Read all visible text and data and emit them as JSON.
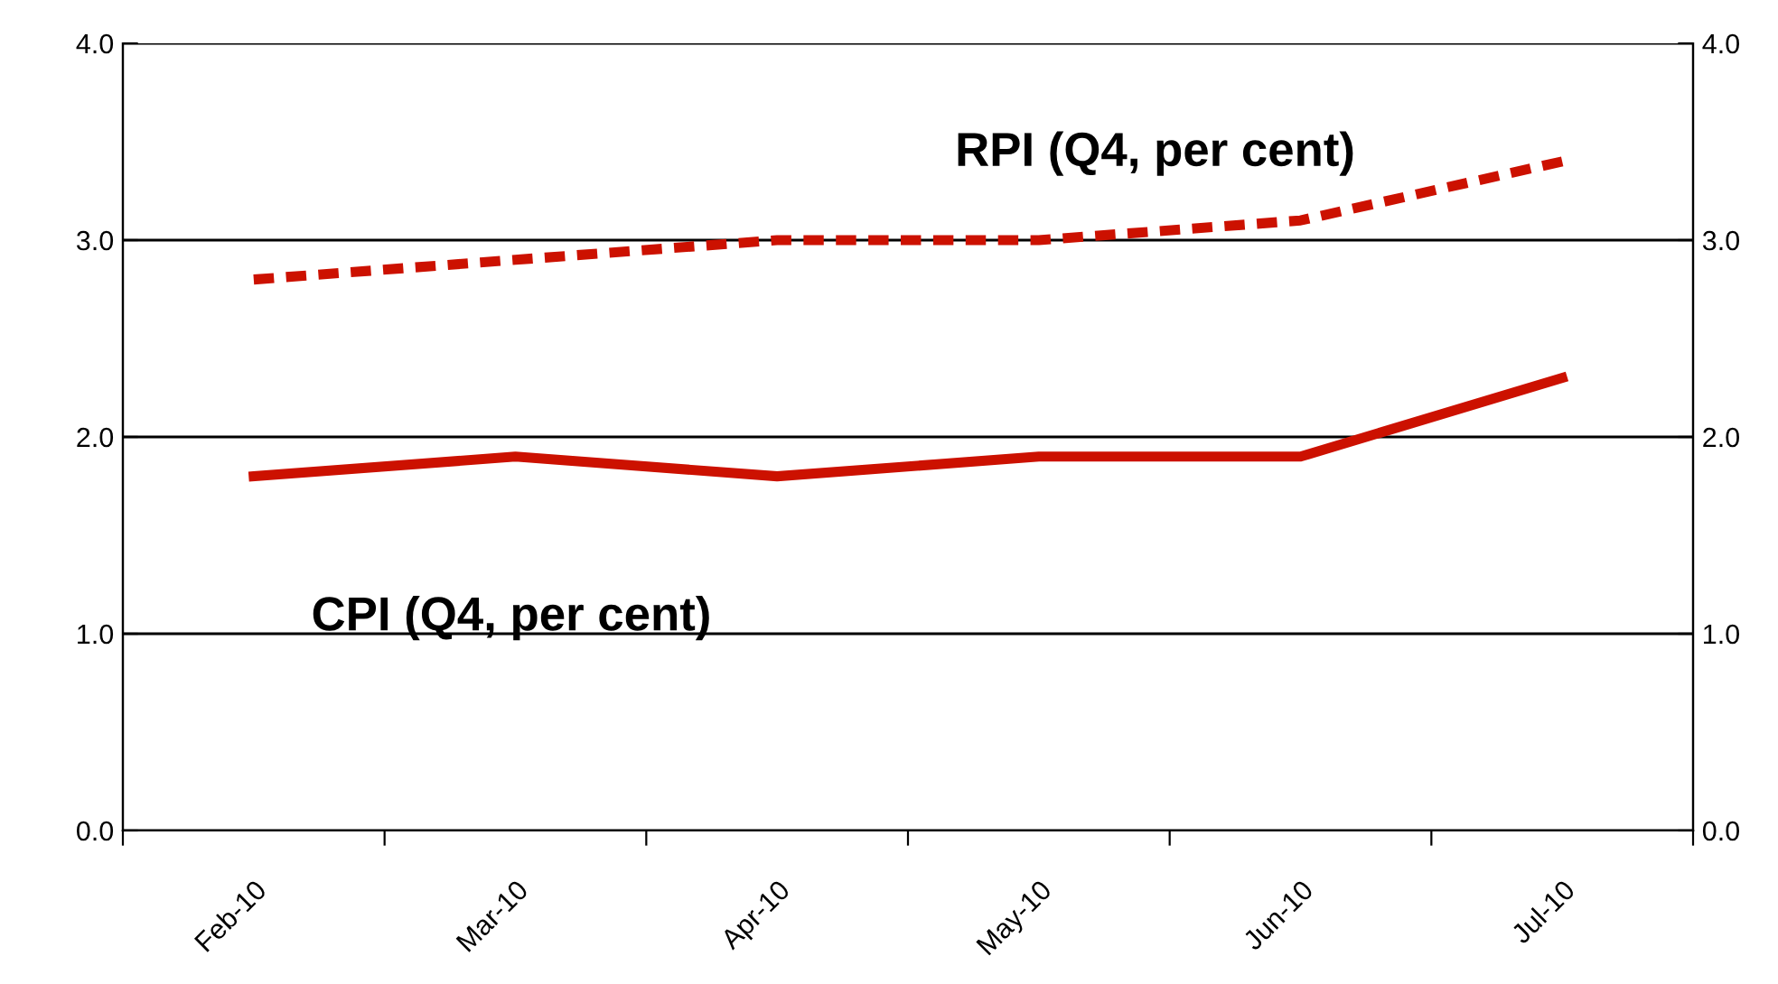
{
  "chart_data": {
    "type": "line",
    "categories": [
      "Feb-10",
      "Mar-10",
      "Apr-10",
      "May-10",
      "Jun-10",
      "Jul-10"
    ],
    "series": [
      {
        "name": "RPI (Q4, per cent)",
        "color": "#cc1100",
        "line_style": "dashed",
        "values": [
          2.8,
          2.9,
          3.0,
          3.0,
          3.1,
          3.4
        ]
      },
      {
        "name": "CPI (Q4, per cent)",
        "color": "#cc1100",
        "line_style": "solid",
        "values": [
          1.8,
          1.9,
          1.8,
          1.9,
          1.9,
          2.3
        ]
      }
    ],
    "ylim": [
      0,
      4
    ],
    "yticks": [
      {
        "value": 0,
        "label": "0.0"
      },
      {
        "value": 1,
        "label": "1.0"
      },
      {
        "value": 2,
        "label": "2.0"
      },
      {
        "value": 3,
        "label": "3.0"
      },
      {
        "value": 4,
        "label": "4.0"
      }
    ],
    "y2lim": [
      0,
      4
    ],
    "y2ticks": [
      {
        "value": 0,
        "label": "0.0"
      },
      {
        "value": 1,
        "label": "1.0"
      },
      {
        "value": 2,
        "label": "2.0"
      },
      {
        "value": 3,
        "label": "3.0"
      },
      {
        "value": 4,
        "label": "4.0"
      }
    ],
    "grid": "y",
    "legend": false
  }
}
